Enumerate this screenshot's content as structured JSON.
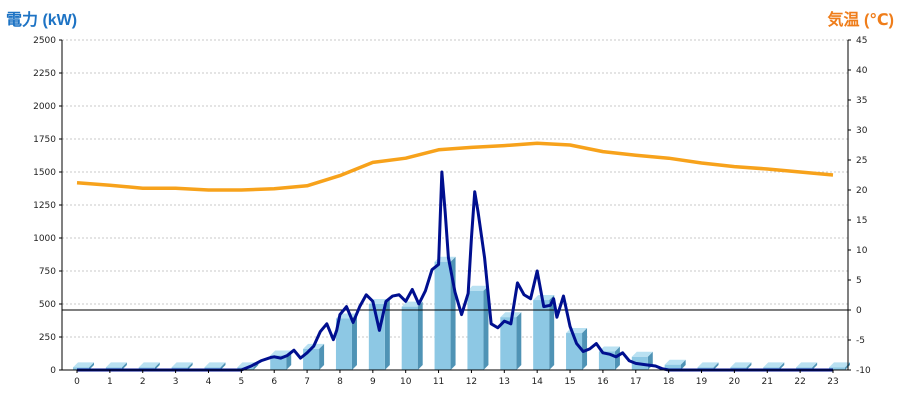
{
  "chart_data": {
    "type": "bar",
    "title": "",
    "xlabel": "",
    "ylabel": "電力 (kW)",
    "ylabel_right": "気温 (℃)",
    "categories": [
      "0",
      "1",
      "2",
      "3",
      "4",
      "5",
      "6",
      "7",
      "8",
      "9",
      "10",
      "11",
      "12",
      "13",
      "14",
      "15",
      "16",
      "17",
      "18",
      "19",
      "20",
      "21",
      "22",
      "23"
    ],
    "ylim": [
      0,
      2500
    ],
    "yticks": [
      0,
      250,
      500,
      750,
      1000,
      1250,
      1500,
      1750,
      2000,
      2250,
      2500
    ],
    "ylim_right": [
      -10,
      45
    ],
    "yticks_right": [
      -10,
      -5,
      0,
      5,
      10,
      15,
      20,
      25,
      30,
      35,
      40,
      45
    ],
    "reference_line": {
      "axis": "right",
      "value": 0
    },
    "grid": true,
    "colors": {
      "bars": "#8dc8e4",
      "power_line": "#000f8f",
      "temperature_line": "#f7a21b",
      "axis_left_label": "#1d73c4",
      "axis_right_label": "#ef7d1a"
    },
    "series": [
      {
        "type": "bar",
        "axis": "left",
        "values": [
          20,
          20,
          20,
          20,
          20,
          20,
          110,
          160,
          390,
          500,
          480,
          820,
          600,
          400,
          530,
          280,
          140,
          100,
          40,
          20,
          20,
          20,
          20,
          20
        ]
      },
      {
        "type": "line",
        "axis": "left",
        "x": [
          0,
          1,
          2,
          3,
          4,
          5,
          5.3,
          5.6,
          5.9,
          6.0,
          6.2,
          6.4,
          6.6,
          6.8,
          7.0,
          7.2,
          7.4,
          7.6,
          7.8,
          7.9,
          8.0,
          8.2,
          8.4,
          8.6,
          8.8,
          9.0,
          9.2,
          9.4,
          9.6,
          9.8,
          10.0,
          10.2,
          10.4,
          10.6,
          10.8,
          11.0,
          11.1,
          11.2,
          11.3,
          11.5,
          11.7,
          11.9,
          12.0,
          12.1,
          12.2,
          12.4,
          12.6,
          12.8,
          13.0,
          13.2,
          13.4,
          13.6,
          13.8,
          14.0,
          14.2,
          14.4,
          14.5,
          14.6,
          14.8,
          15.0,
          15.2,
          15.4,
          15.6,
          15.8,
          16.0,
          16.2,
          16.4,
          16.6,
          16.8,
          17.0,
          17.3,
          17.6,
          17.8,
          18.0,
          19,
          20,
          21,
          22,
          23
        ],
        "y": [
          0,
          0,
          0,
          0,
          0,
          0,
          30,
          70,
          95,
          100,
          90,
          110,
          150,
          90,
          130,
          180,
          290,
          350,
          230,
          300,
          420,
          480,
          360,
          480,
          570,
          520,
          300,
          520,
          560,
          570,
          520,
          610,
          500,
          600,
          760,
          800,
          1500,
          1200,
          850,
          590,
          420,
          580,
          1000,
          1350,
          1200,
          850,
          350,
          320,
          370,
          350,
          660,
          570,
          540,
          750,
          480,
          490,
          540,
          400,
          560,
          330,
          200,
          140,
          160,
          200,
          130,
          120,
          100,
          130,
          70,
          50,
          40,
          30,
          10,
          0,
          0,
          0,
          0,
          0,
          0
        ]
      },
      {
        "type": "line",
        "axis": "right",
        "x": [
          0,
          1,
          2,
          3,
          4,
          5,
          6,
          7,
          8,
          9,
          10,
          11,
          12,
          13,
          14,
          15,
          16,
          17,
          18,
          19,
          20,
          21,
          22,
          23
        ],
        "y": [
          21.2,
          20.8,
          20.3,
          20.3,
          20.0,
          20.0,
          20.2,
          20.7,
          22.4,
          24.6,
          25.3,
          26.7,
          27.1,
          27.4,
          27.8,
          27.5,
          26.4,
          25.8,
          25.3,
          24.5,
          23.9,
          23.5,
          23.0,
          22.5
        ]
      }
    ]
  }
}
